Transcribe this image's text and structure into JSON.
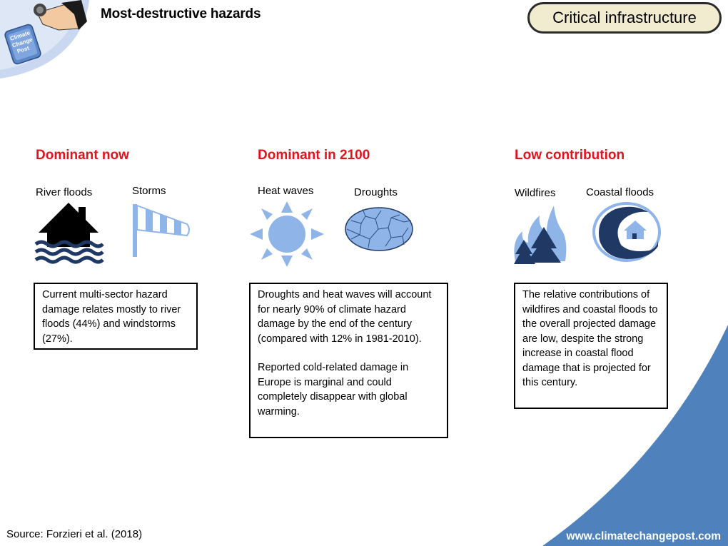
{
  "header": {
    "title": "Most-destructive hazards",
    "badge": "Critical infrastructure",
    "logo_text": [
      "Climate",
      "Change",
      "Post"
    ]
  },
  "columns": [
    {
      "heading": "Dominant now",
      "icons": [
        {
          "label": "River floods",
          "icon": "house-flood-icon"
        },
        {
          "label": "Storms",
          "icon": "windsock-icon"
        }
      ],
      "text": [
        "Current multi-sector hazard damage relates mostly to river floods (44%) and windstorms (27%)."
      ]
    },
    {
      "heading": "Dominant in 2100",
      "icons": [
        {
          "label": "Heat waves",
          "icon": "sun-icon"
        },
        {
          "label": "Droughts",
          "icon": "cracked-earth-icon"
        }
      ],
      "text": [
        "Droughts and heat waves will account for nearly 90% of climate hazard damage by the end of the century (compared with 12% in 1981-2010).",
        "Reported cold-related damage in Europe is marginal and could completely disappear with global warming."
      ]
    },
    {
      "heading": "Low contribution",
      "icons": [
        {
          "label": "Wildfires",
          "icon": "forest-fire-icon"
        },
        {
          "label": "Coastal floods",
          "icon": "wave-house-icon"
        }
      ],
      "text": [
        "The relative contributions of wildfires and coastal floods to the overall projected damage are low, despite the strong increase in coastal flood damage that is projected for this century."
      ]
    }
  ],
  "footer": {
    "source": "Source: Forzieri et al. (2018)",
    "website": "www.climatechangepost.com"
  },
  "colors": {
    "heading_red": "#e3131b",
    "icon_blue": "#8fb4e8",
    "navy": "#1f3864",
    "corner_blue": "#4f81bd",
    "badge_fill": "#f1ecd0"
  }
}
